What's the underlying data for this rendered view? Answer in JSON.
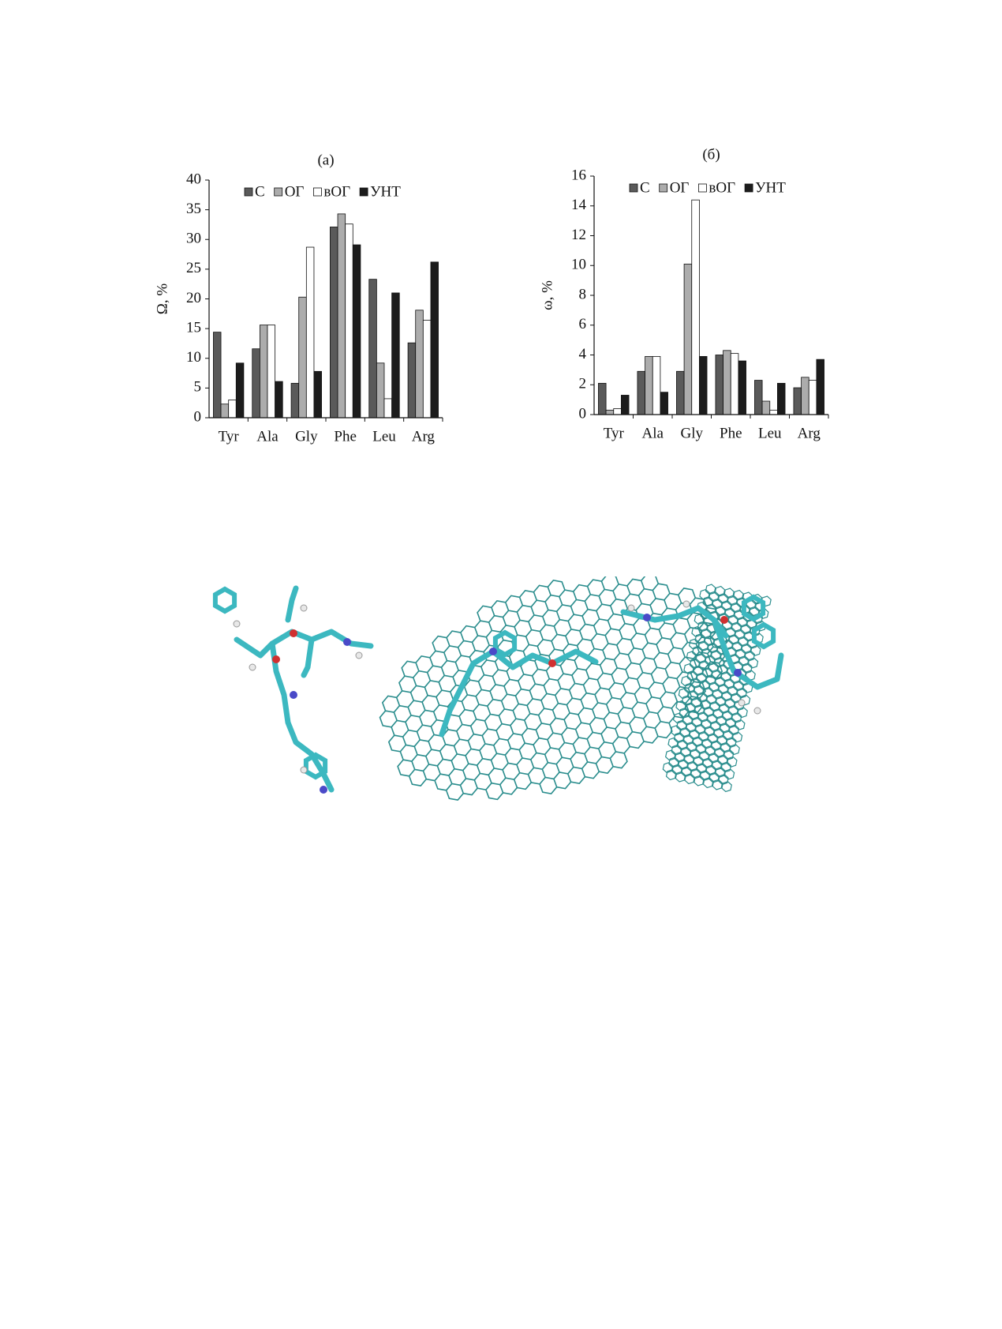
{
  "chart_data": [
    {
      "type": "bar",
      "title": "(а)",
      "y_label": "Ω, %",
      "categories": [
        "Tyr",
        "Ala",
        "Gly",
        "Phe",
        "Leu",
        "Arg"
      ],
      "series": [
        {
          "name": "С",
          "color": "#5a5a5a",
          "values": [
            14.4,
            11.6,
            5.8,
            32.1,
            23.3,
            12.6
          ]
        },
        {
          "name": "ОГ",
          "color": "#acacac",
          "values": [
            2.3,
            15.6,
            20.3,
            34.3,
            9.2,
            18.1
          ]
        },
        {
          "name": "вОГ",
          "color": "#ffffff",
          "values": [
            3.0,
            15.6,
            28.7,
            32.6,
            3.2,
            16.4
          ]
        },
        {
          "name": "УНТ",
          "color": "#1c1c1c",
          "values": [
            9.2,
            6.1,
            7.8,
            29.1,
            21.0,
            26.2
          ]
        }
      ],
      "ylim": [
        0,
        40
      ],
      "yticks": [
        0,
        5,
        10,
        15,
        20,
        25,
        30,
        35,
        40
      ],
      "legend": "top",
      "grid": false
    },
    {
      "type": "bar",
      "title": "(б)",
      "y_label": "ω, %",
      "categories": [
        "Tyr",
        "Ala",
        "Gly",
        "Phe",
        "Leu",
        "Arg"
      ],
      "series": [
        {
          "name": "С",
          "color": "#5a5a5a",
          "values": [
            2.1,
            2.9,
            2.9,
            4.0,
            2.3,
            1.8
          ]
        },
        {
          "name": "ОГ",
          "color": "#acacac",
          "values": [
            0.3,
            3.9,
            10.1,
            4.3,
            0.9,
            2.5
          ]
        },
        {
          "name": "вОГ",
          "color": "#ffffff",
          "values": [
            0.4,
            3.9,
            14.4,
            4.1,
            0.3,
            2.3
          ]
        },
        {
          "name": "УНТ",
          "color": "#1c1c1c",
          "values": [
            1.3,
            1.5,
            3.9,
            3.6,
            2.1,
            3.7
          ]
        }
      ],
      "ylim": [
        0,
        16
      ],
      "yticks": [
        0,
        2,
        4,
        6,
        8,
        10,
        12,
        14,
        16
      ],
      "legend": "top",
      "grid": false
    }
  ]
}
